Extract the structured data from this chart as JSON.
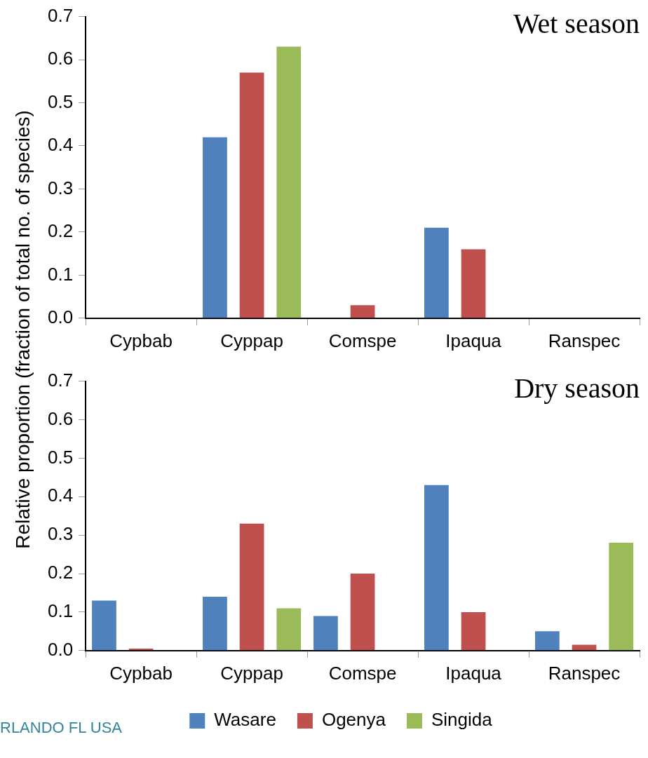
{
  "chart_data": [
    {
      "type": "bar",
      "title": "Wet season",
      "ylabel": "Relative proportion (fraction of total no. of species)",
      "categories": [
        "Cypbab",
        "Cyppap",
        "Comspe",
        "Ipaqua",
        "Ranspec"
      ],
      "ylim": [
        0,
        0.7
      ],
      "yticks": [
        {
          "value": 0,
          "label": "0.0"
        },
        0.1,
        0.2,
        0.3,
        0.4,
        0.5,
        0.6,
        0.7
      ],
      "grid": false,
      "legend": false,
      "series": [
        {
          "color": "#4f81bd",
          "values": [
            0,
            0.42,
            0,
            0.21,
            0
          ]
        },
        {
          "color": "#c0504d",
          "values": [
            0,
            0.57,
            0.03,
            0.16,
            0
          ]
        },
        {
          "color": "#9bbb59",
          "values": [
            0,
            0.63,
            0,
            0,
            0
          ]
        }
      ]
    },
    {
      "type": "bar",
      "title": "Dry season",
      "categories": [
        "Cypbab",
        "Cyppap",
        "Comspe",
        "Ipaqua",
        "Ranspec"
      ],
      "ylim": [
        0,
        0.7
      ],
      "yticks": [
        {
          "value": 0,
          "label": "0.0"
        },
        0.1,
        0.2,
        0.3,
        0.4,
        0.5,
        0.6,
        0.7
      ],
      "grid": false,
      "legend": "bottom",
      "annotations": [
        "RLANDO FL USA"
      ],
      "series": [
        {
          "name": "Wasare",
          "color": "#4f81bd",
          "values": [
            0.13,
            0.14,
            0.09,
            0.43,
            0.05
          ]
        },
        {
          "name": "Ogenya",
          "color": "#c0504d",
          "values": [
            0.005,
            0.33,
            0.2,
            0.1,
            0.015
          ]
        },
        {
          "name": "Singida",
          "color": "#9bbb59",
          "values": [
            0,
            0.11,
            0,
            0,
            0.28
          ]
        }
      ]
    }
  ]
}
